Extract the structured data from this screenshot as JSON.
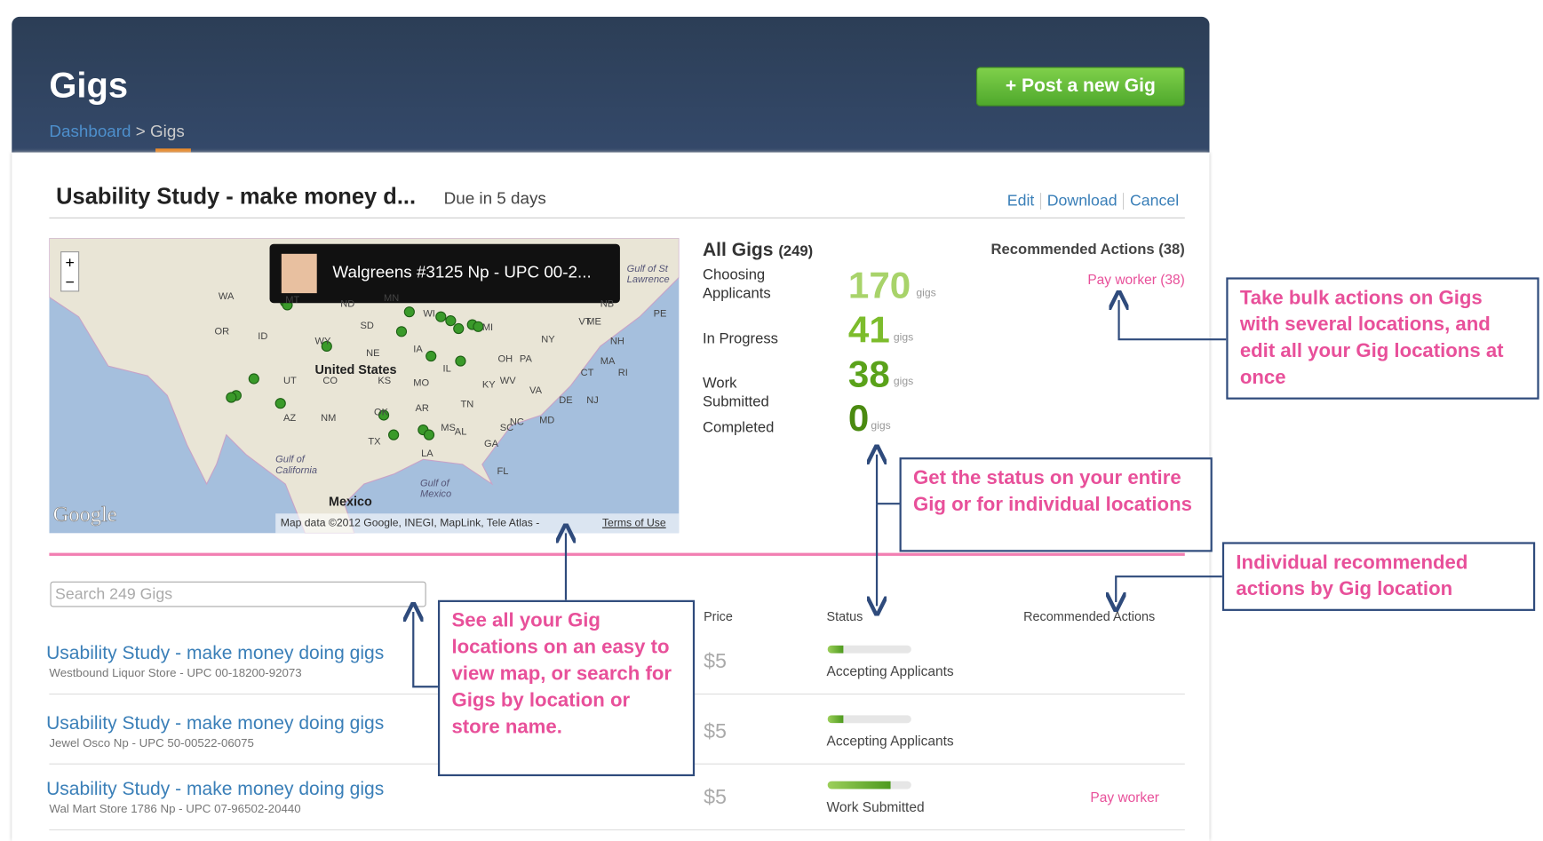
{
  "header": {
    "title": "Gigs",
    "breadcrumb_link": "Dashboard",
    "breadcrumb_sep": ">",
    "breadcrumb_current": "Gigs",
    "button": "+ Post a new Gig"
  },
  "gig": {
    "title": "Usability Study - make money d...",
    "due": "Due in 5 days",
    "actions": [
      "Edit",
      "Download",
      "Cancel"
    ]
  },
  "map": {
    "popup": "Walgreens #3125 Np - UPC 00-2...",
    "zoom_in": "+",
    "zoom_out": "−",
    "labels": [
      "WA",
      "OR",
      "ID",
      "MT",
      "ND",
      "MN",
      "SD",
      "WY",
      "NE",
      "IA",
      "UT",
      "CO",
      "KS",
      "MO",
      "AZ",
      "NM",
      "OK",
      "AR",
      "TX",
      "LA",
      "MS",
      "AL",
      "TN",
      "KY",
      "IL",
      "OH",
      "MI",
      "WI",
      "PA",
      "NY",
      "VT",
      "ME",
      "NH",
      "MA",
      "RI",
      "CT",
      "NJ",
      "DE",
      "MD",
      "WV",
      "VA",
      "NC",
      "SC",
      "GA",
      "FL",
      "PE",
      "NB",
      "United States",
      "Mexico",
      "Gulf of California",
      "Gulf of Mexico",
      "Gulf of St Lawrence"
    ],
    "logo": "Google",
    "attribution": "Map data ©2012 Google, INEGI, MapLink, Tele Atlas -",
    "terms": "Terms of Use"
  },
  "summary": {
    "title": "All Gigs",
    "count": "(249)",
    "unit": "gigs",
    "stats": [
      {
        "label": "Choosing Applicants",
        "value": "170"
      },
      {
        "label": "In Progress",
        "value": "41"
      },
      {
        "label": "Work Submitted",
        "value": "38"
      },
      {
        "label": "Completed",
        "value": "0"
      }
    ],
    "recommended_title": "Recommended Actions (38)",
    "recommended_action": "Pay worker (38)"
  },
  "list": {
    "search_placeholder": "Search 249 Gigs",
    "columns": [
      "Price",
      "Status",
      "Recommended Actions"
    ],
    "rows": [
      {
        "title": "Usability Study - make money doing gigs",
        "subtitle": "Westbound Liquor Store - UPC 00-18200-92073",
        "price": "$5",
        "status": "Accepting Applicants",
        "action": ""
      },
      {
        "title": "Usability Study - make money doing gigs",
        "subtitle": "Jewel Osco Np - UPC 50-00522-06075",
        "price": "$5",
        "status": "Accepting Applicants",
        "action": ""
      },
      {
        "title": "Usability Study - make money doing gigs",
        "subtitle": "Wal Mart Store 1786 Np - UPC 07-96502-20440",
        "price": "$5",
        "status": "Work Submitted",
        "action": "Pay worker"
      }
    ]
  },
  "callouts": [
    "Take bulk actions on Gigs with several locations, and edit all your Gig locations at once",
    "Get the status on your entire Gig or for individual locations",
    "Individual recommended actions by Gig location",
    "See all your Gig locations on an easy to view map, or search for Gigs by location or store name."
  ]
}
